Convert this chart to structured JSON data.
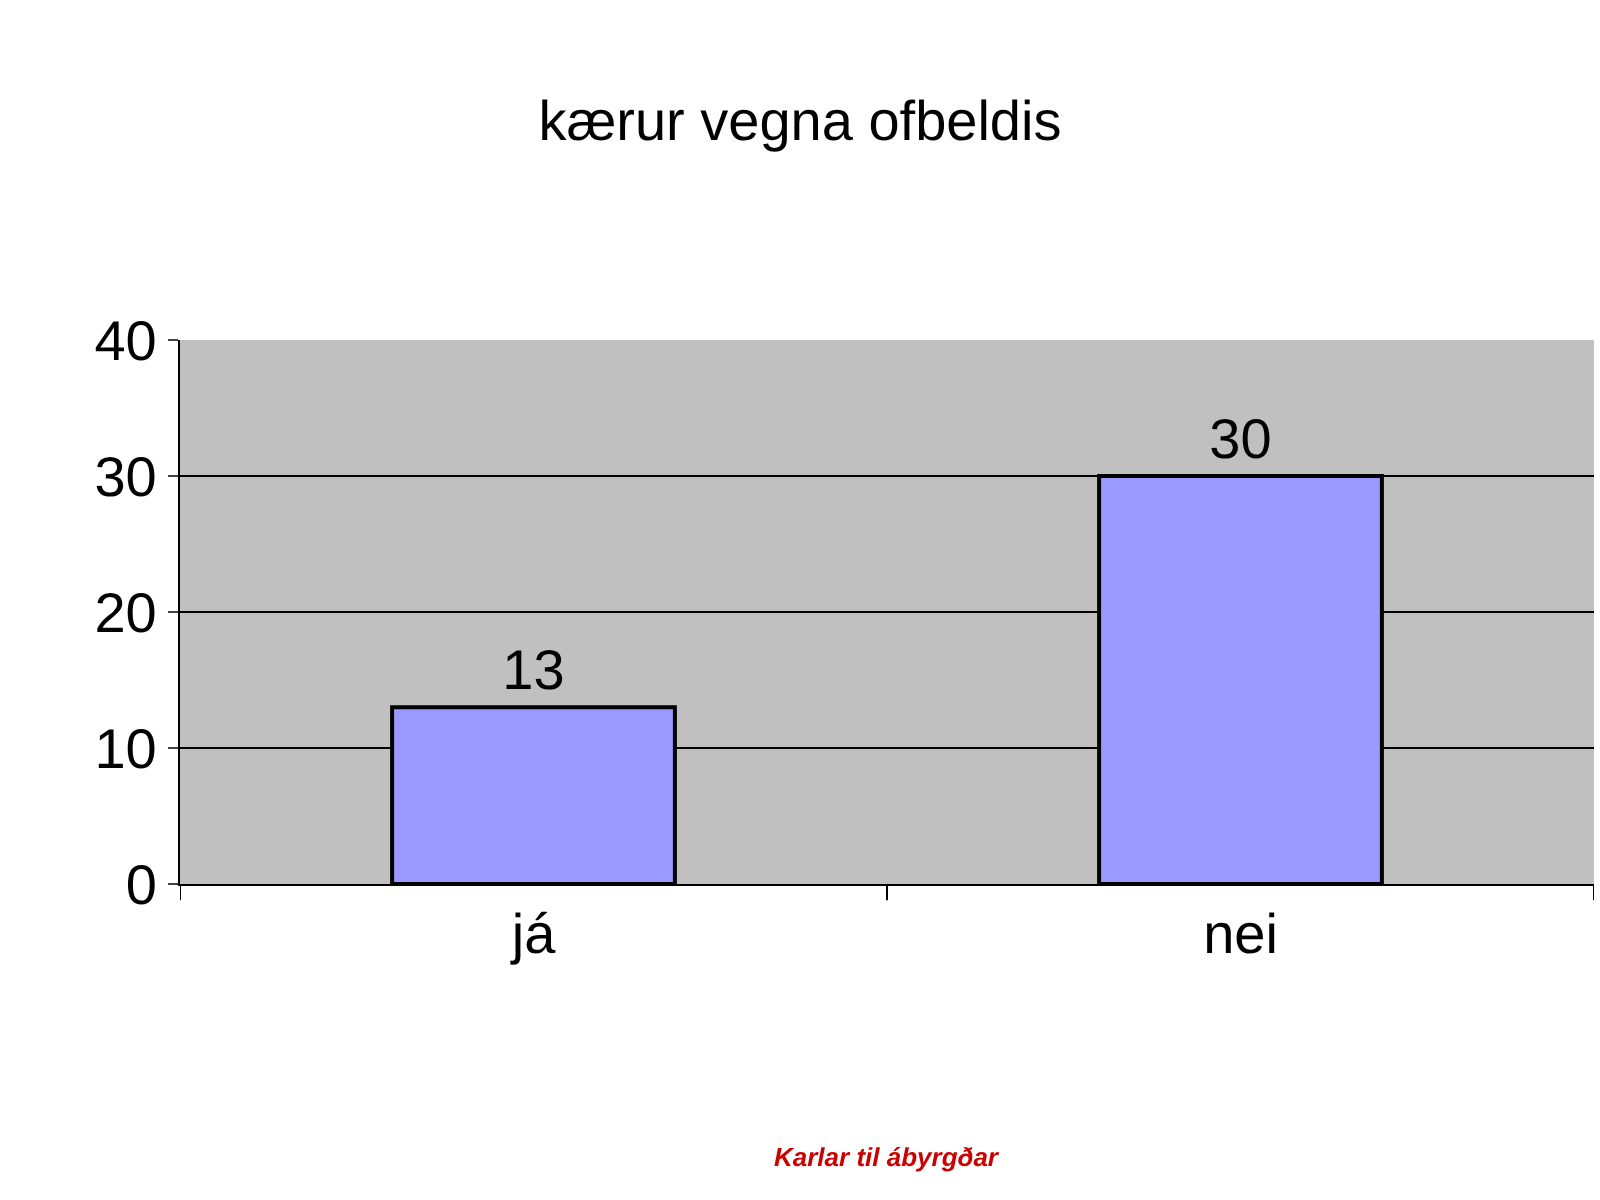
{
  "chart_data": {
    "type": "bar",
    "title": "kærur vegna ofbeldis",
    "categories": [
      "já",
      "nei"
    ],
    "values": [
      13,
      30
    ],
    "color": "#9999ff",
    "ylim": [
      0,
      40
    ],
    "yticks": [
      0,
      10,
      20,
      30,
      40
    ],
    "grid": "y",
    "data_labels": true,
    "annotations": [
      "Karlar til ábyrgðar"
    ]
  }
}
